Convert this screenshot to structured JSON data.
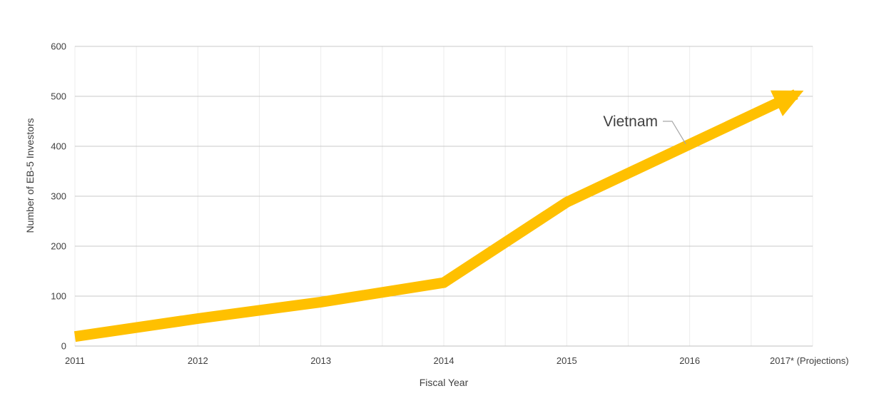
{
  "chart_data": {
    "type": "line",
    "title": "",
    "xlabel": "Fiscal Year",
    "ylabel": "Number of EB-5 Investors",
    "x": [
      "2011",
      "2012",
      "2013",
      "2014",
      "2015",
      "2016",
      "2017* (Projections)"
    ],
    "ylim": [
      0,
      600
    ],
    "yticks": [
      0,
      100,
      200,
      300,
      400,
      500,
      600
    ],
    "grid": true,
    "legend": "none",
    "series": [
      {
        "name": "Vietnam",
        "values": [
          19,
          55,
          88,
          127,
          288,
          404,
          520
        ],
        "color": "#FFC000"
      }
    ],
    "annotations": [
      {
        "text": "Vietnam",
        "target_series": "Vietnam"
      }
    ]
  }
}
